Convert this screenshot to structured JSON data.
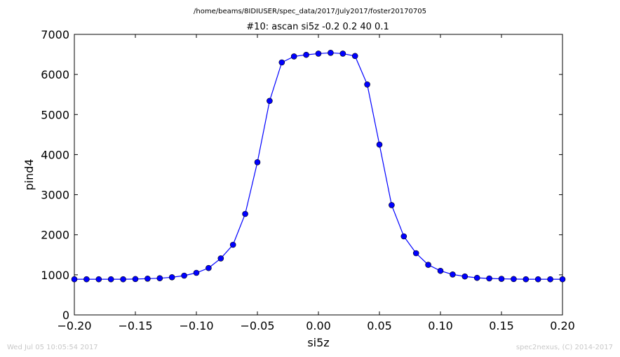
{
  "chart_data": {
    "type": "line",
    "suptitle": "/home/beams/8IDIUSER/spec_data/2017/July2017/foster20170705",
    "title": "#10: ascan  si5z -0.2 0.2  40 0.1",
    "xlabel": "si5z",
    "ylabel": "pind4",
    "xlim": [
      -0.2,
      0.2
    ],
    "ylim": [
      0,
      7000
    ],
    "xticks": [
      -0.2,
      -0.15,
      -0.1,
      -0.05,
      0.0,
      0.05,
      0.1,
      0.15,
      0.2
    ],
    "xtick_labels": [
      "−0.20",
      "−0.15",
      "−0.10",
      "−0.05",
      "0.00",
      "0.05",
      "0.10",
      "0.15",
      "0.20"
    ],
    "yticks": [
      0,
      1000,
      2000,
      3000,
      4000,
      5000,
      6000,
      7000
    ],
    "ytick_labels": [
      "0",
      "1000",
      "2000",
      "3000",
      "4000",
      "5000",
      "6000",
      "7000"
    ],
    "grid": false,
    "series": [
      {
        "color": "#0000ff",
        "marker": "circle",
        "x": [
          -0.2,
          -0.19,
          -0.18,
          -0.17,
          -0.16,
          -0.15,
          -0.14,
          -0.13,
          -0.12,
          -0.11,
          -0.1,
          -0.09,
          -0.08,
          -0.07,
          -0.06,
          -0.05,
          -0.04,
          -0.03,
          -0.02,
          -0.01,
          0.0,
          0.01,
          0.02,
          0.03,
          0.04,
          0.05,
          0.06,
          0.07,
          0.08,
          0.09,
          0.1,
          0.11,
          0.12,
          0.13,
          0.14,
          0.15,
          0.16,
          0.17,
          0.18,
          0.19,
          0.2
        ],
        "y": [
          890,
          890,
          890,
          890,
          890,
          895,
          905,
          915,
          940,
          980,
          1050,
          1170,
          1410,
          1750,
          2520,
          3810,
          5340,
          6300,
          6450,
          6490,
          6520,
          6540,
          6520,
          6460,
          5750,
          4250,
          2740,
          1960,
          1540,
          1250,
          1100,
          1010,
          960,
          925,
          910,
          900,
          895,
          890,
          890,
          890,
          890
        ]
      }
    ]
  },
  "footer": {
    "timestamp": "Wed Jul 05 10:05:54 2017",
    "credit": "spec2nexus, (C) 2014-2017"
  }
}
